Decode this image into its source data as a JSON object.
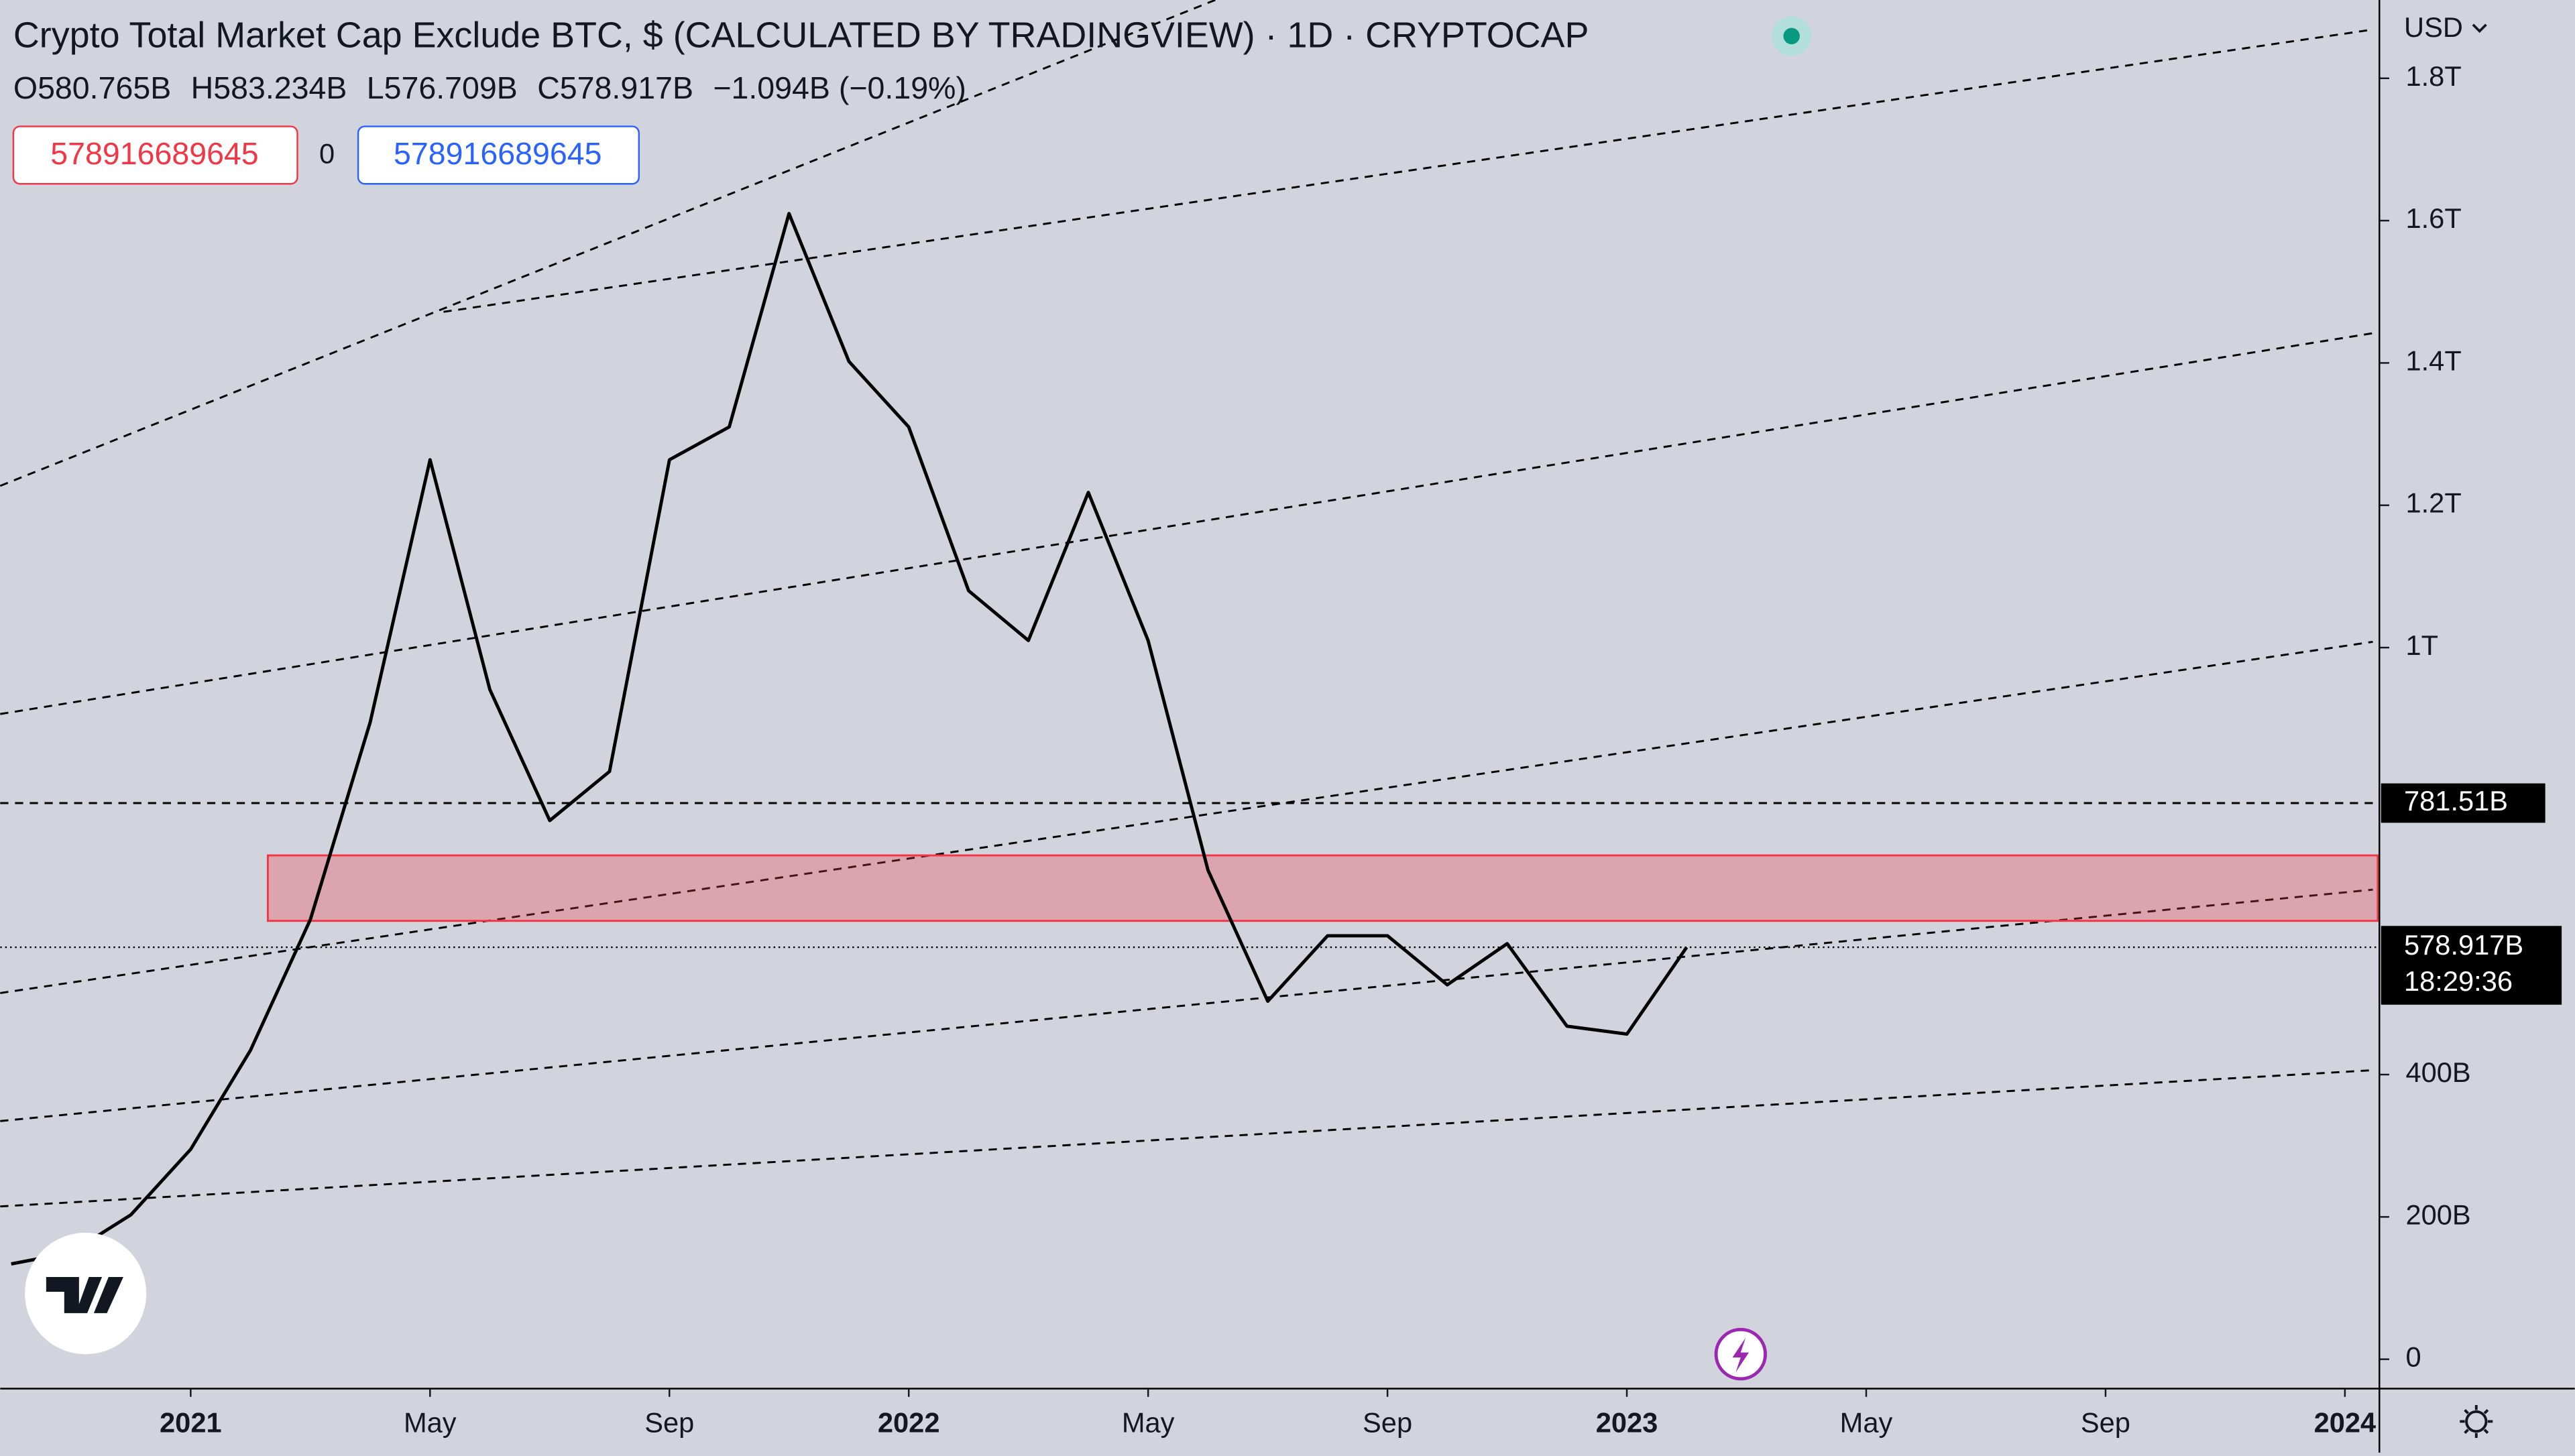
{
  "header": {
    "title": "Crypto Total Market Cap Exclude BTC, $ (CALCULATED BY TRADINGVIEW) · 1D · CRYPTOCAP",
    "ohlc": [
      "O580.765B",
      "H583.234B",
      "L576.709B",
      "C578.917B",
      "−1.094B (−0.19%)"
    ],
    "inputs": [
      "578916689645",
      "0",
      "578916689645"
    ],
    "currency": "USD"
  },
  "chart_data": {
    "type": "line",
    "x": [
      "2020-10",
      "2020-11",
      "2020-12",
      "2021-01",
      "2021-02",
      "2021-03",
      "2021-04",
      "2021-05",
      "2021-06",
      "2021-07",
      "2021-08",
      "2021-09",
      "2021-10",
      "2021-11",
      "2021-12",
      "2022-01",
      "2022-02",
      "2022-03",
      "2022-04",
      "2022-05",
      "2022-06",
      "2022-07",
      "2022-08",
      "2022-09",
      "2022-10",
      "2022-11",
      "2022-12",
      "2023-01",
      "2023-02"
    ],
    "values": [
      134,
      150,
      203,
      295,
      434,
      618,
      895,
      1264,
      941,
      757,
      826,
      1264,
      1310,
      1610,
      1402,
      1310,
      1080,
      1010,
      1218,
      1010,
      687,
      503,
      595,
      595,
      526,
      584,
      468,
      457,
      579
    ],
    "color": "#000000",
    "ylim": [
      -39,
      1910
    ],
    "yticks": [
      0,
      {
        "value": 200,
        "label": "200B"
      },
      {
        "value": 400,
        "label": "400B"
      },
      {
        "value": 1000,
        "label": "1T"
      },
      {
        "value": 1200,
        "label": "1.2T"
      },
      {
        "value": 1400,
        "label": "1.4T"
      },
      {
        "value": 1600,
        "label": "1.6T"
      },
      {
        "value": 1800,
        "label": "1.8T"
      }
    ],
    "xticks": [
      {
        "value": "2021-01",
        "label": "2021"
      },
      {
        "value": "2021-05",
        "label": "May"
      },
      {
        "value": "2021-09",
        "label": "Sep"
      },
      {
        "value": "2022-01",
        "label": "2022"
      },
      {
        "value": "2022-05",
        "label": "May"
      },
      {
        "value": "2022-09",
        "label": "Sep"
      },
      {
        "value": "2023-01",
        "label": "2023"
      },
      {
        "value": "2023-05",
        "label": "May"
      },
      {
        "value": "2023-09",
        "label": "Sep"
      },
      {
        "value": "2024-01",
        "label": "2024"
      }
    ],
    "zone": {
      "range": [
        616,
        708
      ],
      "color": "#f23645"
    },
    "hline": {
      "value": 781.51,
      "label": "781.51B"
    },
    "last": {
      "value": 578.917,
      "label": "578.917B",
      "countdown": "18:29:36"
    }
  }
}
